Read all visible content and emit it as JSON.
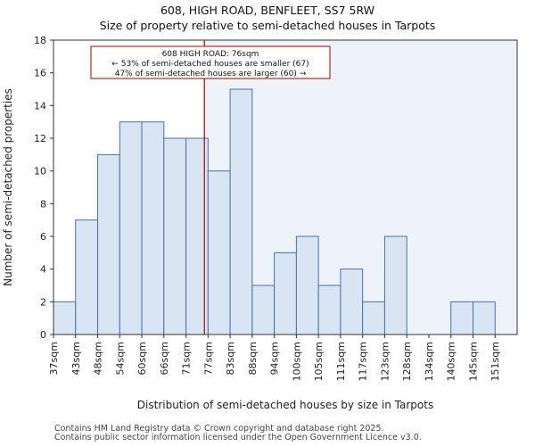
{
  "title": "608, HIGH ROAD, BENFLEET, SS7 5RW",
  "subtitle": "Size of property relative to semi-detached houses in Tarpots",
  "footer": [
    "Contains HM Land Registry data © Crown copyright and database right 2025.",
    "Contains public sector information licensed under the Open Government Licence v3.0."
  ],
  "chart_data": {
    "type": "bar",
    "categories": [
      "37sqm",
      "43sqm",
      "48sqm",
      "54sqm",
      "60sqm",
      "66sqm",
      "71sqm",
      "77sqm",
      "83sqm",
      "88sqm",
      "94sqm",
      "100sqm",
      "105sqm",
      "111sqm",
      "117sqm",
      "123sqm",
      "128sqm",
      "134sqm",
      "140sqm",
      "145sqm",
      "151sqm"
    ],
    "values": [
      2,
      7,
      11,
      13,
      13,
      12,
      12,
      10,
      15,
      3,
      5,
      6,
      3,
      4,
      2,
      6,
      0,
      0,
      2,
      2,
      0
    ],
    "xlabel": "Distribution of semi-detached houses by size in Tarpots",
    "ylabel": "Number of semi-detached properties",
    "ylim": [
      0,
      18
    ],
    "yticks": [
      0,
      2,
      4,
      6,
      8,
      10,
      12,
      14,
      16,
      18
    ],
    "property_size_sqm": 76,
    "annotation": {
      "line1": "608 HIGH ROAD: 76sqm",
      "line2": "← 53% of semi-detached houses are smaller (67)",
      "line3": "47% of semi-detached houses are larger (60) →"
    },
    "colors": {
      "bar_fill": "#dae5f4",
      "bar_edge": "#4a6fa8",
      "marker_line": "#aa0000",
      "larger_region": "#eef2fb"
    }
  }
}
